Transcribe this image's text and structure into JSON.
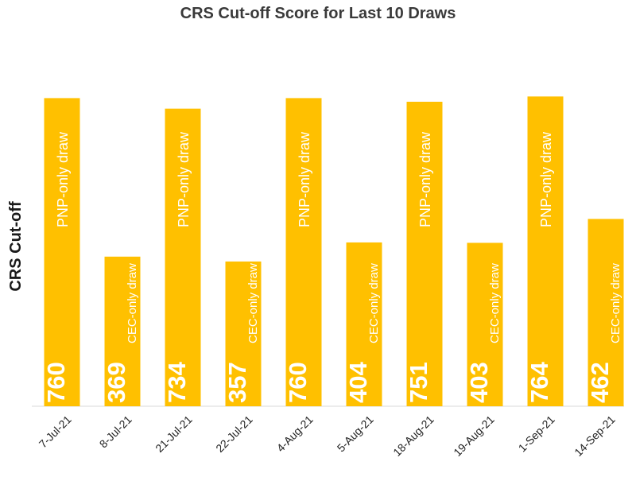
{
  "chart_data": {
    "type": "bar",
    "title": "CRS Cut-off Score for Last 10 Draws",
    "xlabel": "",
    "ylabel": "CRS Cut-off",
    "ylim": [
      0,
      800
    ],
    "grid": false,
    "bar_color": "#FFC000",
    "categories": [
      "7-Jul-21",
      "8-Jul-21",
      "21-Jul-21",
      "22-Jul-21",
      "4-Aug-21",
      "5-Aug-21",
      "18-Aug-21",
      "19-Aug-21",
      "1-Sep-21",
      "14-Sep-21"
    ],
    "values": [
      760,
      369,
      734,
      357,
      760,
      404,
      751,
      403,
      764,
      462
    ],
    "value_labels": [
      "760",
      "369",
      "734",
      "357",
      "760",
      "404",
      "751",
      "403",
      "764",
      "462"
    ],
    "annotations": [
      "PNP-only draw",
      "CEC-only draw",
      "PNP-only draw",
      "CEC-only draw",
      "PNP-only draw",
      "CEC-only draw",
      "PNP-only draw",
      "CEC-only draw",
      "PNP-only draw",
      "CEC-only draw"
    ]
  }
}
